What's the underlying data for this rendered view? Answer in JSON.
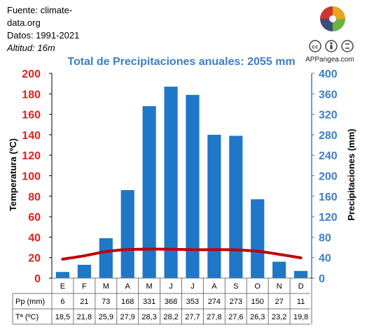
{
  "source": {
    "line1": "Fuente: climate-",
    "line2": "data.org",
    "line3": "Datos: 1991-2021",
    "line4": "Altitud: 16m"
  },
  "brand": "APPangea.com",
  "icons": {
    "logo": "puzzle-logo-icon",
    "license": "creative-commons-by-icon"
  },
  "colors": {
    "bars": "#1f77c8",
    "temp_line": "#c00000",
    "left_axis": "#e02020",
    "right_axis": "#3d7fc4",
    "title": "#3d7fc4"
  },
  "chart_data": {
    "type": "bar",
    "title": "Total de Precipitaciones anuales: 2055 mm",
    "categories": [
      "E",
      "F",
      "M",
      "A",
      "M",
      "J",
      "J",
      "A",
      "S",
      "O",
      "N",
      "D"
    ],
    "series": [
      {
        "name": "Pp (mm)",
        "type": "bar",
        "axis": "right",
        "values": [
          6,
          21,
          73,
          168,
          331,
          368,
          353,
          274,
          273,
          150,
          27,
          11
        ]
      },
      {
        "name": "Tª (ºC)",
        "type": "line",
        "axis": "left",
        "values": [
          18.5,
          21.8,
          25.9,
          27.9,
          28.3,
          28.2,
          27.7,
          27.8,
          27.6,
          26.3,
          23.2,
          19.8
        ]
      }
    ],
    "bar_heights_plot": [
      6,
      13,
      39,
      86,
      168,
      187,
      179,
      140,
      139,
      77,
      16,
      7
    ],
    "ylabel_left": "Temperatura (ºC)",
    "ylabel_right": "Precipitaciones (mm)",
    "ylim_left": [
      0,
      200
    ],
    "ylim_right": [
      0,
      400
    ],
    "yticks_left": [
      0,
      20,
      40,
      60,
      80,
      100,
      120,
      140,
      160,
      180,
      200
    ],
    "yticks_right": [
      0,
      40,
      80,
      120,
      160,
      200,
      240,
      280,
      320,
      360,
      400
    ],
    "grid": false,
    "table": {
      "rows": [
        {
          "label": "Pp (mm)",
          "cells": [
            "6",
            "21",
            "73",
            "168",
            "331",
            "368",
            "353",
            "274",
            "273",
            "150",
            "27",
            "11"
          ]
        },
        {
          "label": "Tª (ºC)",
          "cells": [
            "18,5",
            "21,8",
            "25,9",
            "27,9",
            "28,3",
            "28,2",
            "27,7",
            "27,8",
            "27,6",
            "26,3",
            "23,2",
            "19,8"
          ]
        }
      ]
    }
  }
}
